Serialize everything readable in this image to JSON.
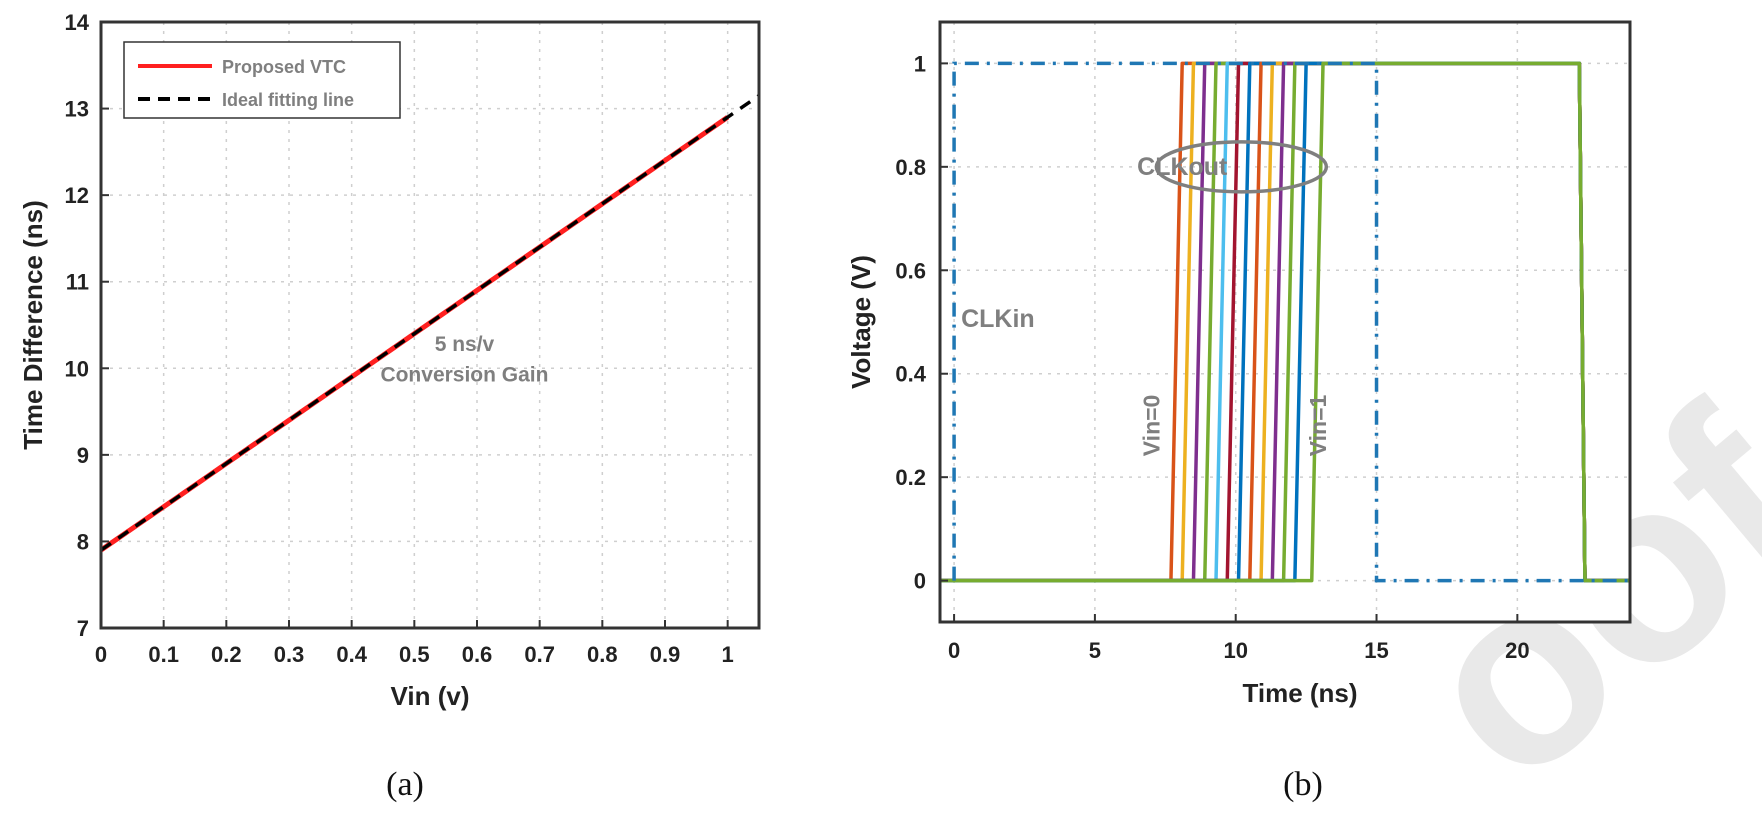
{
  "watermark": "oofs",
  "panels": [
    {
      "caption": "(a)"
    },
    {
      "caption": "(b)"
    }
  ],
  "chart_data": [
    {
      "type": "line",
      "xlabel": "Vin (v)",
      "ylabel": "Time Difference (ns)",
      "xlim": [
        0,
        1.05
      ],
      "ylim": [
        7,
        14
      ],
      "xticks": [
        "0",
        "0.1",
        "0.2",
        "0.3",
        "0.4",
        "0.5",
        "0.6",
        "0.7",
        "0.8",
        "0.9",
        "1"
      ],
      "yticks": [
        "7",
        "8",
        "9",
        "10",
        "11",
        "12",
        "13",
        "14"
      ],
      "grid": true,
      "legend_position": "top-left",
      "series": [
        {
          "name": "Proposed VTC",
          "color": "#ff2020",
          "style": "solid",
          "x": [
            0,
            1
          ],
          "y": [
            7.9,
            12.9
          ]
        },
        {
          "name": "Ideal fitting line",
          "color": "#000000",
          "style": "dashed",
          "x": [
            0,
            1.05
          ],
          "y": [
            7.9,
            13.15
          ]
        }
      ],
      "annotations": [
        {
          "text": "5 ns/v",
          "x": 0.58,
          "y": 10.2
        },
        {
          "text": "Conversion Gain",
          "x": 0.58,
          "y": 9.85
        }
      ]
    },
    {
      "type": "line",
      "xlabel": "Time (ns)",
      "ylabel": "Voltage (V)",
      "xlim": [
        -0.5,
        24
      ],
      "ylim": [
        -0.08,
        1.08
      ],
      "xticks": [
        "0",
        "5",
        "10",
        "15",
        "20"
      ],
      "yticks": [
        "0",
        "0.2",
        "0.4",
        "0.6",
        "0.8",
        "1"
      ],
      "grid": true,
      "clkin": {
        "color": "#1f77b4",
        "style": "dash-dot",
        "x": [
          0,
          0,
          15,
          15,
          24
        ],
        "y": [
          0,
          1,
          1,
          0,
          0
        ]
      },
      "clkout": {
        "fall_time": 22.3,
        "rise_times": [
          7.9,
          8.3,
          8.7,
          9.1,
          9.5,
          9.9,
          10.3,
          10.7,
          11.1,
          11.5,
          11.9,
          12.3,
          12.9
        ],
        "colors": [
          "#d95319",
          "#edb120",
          "#7e2f8e",
          "#77ac30",
          "#4dbeee",
          "#a2142f",
          "#0072bd",
          "#d95319",
          "#edb120",
          "#7e2f8e",
          "#77ac30",
          "#0072bd",
          "#77ac30"
        ]
      },
      "annotations": [
        {
          "text": "CLKout",
          "x": 6.5,
          "y": 0.8
        },
        {
          "text": "CLKin",
          "x": 0.25,
          "y": 0.49
        },
        {
          "text": "Vin=0",
          "x": 7.3,
          "y": 0.3
        },
        {
          "text": "Vin=1",
          "x": 13.2,
          "y": 0.3
        }
      ]
    }
  ]
}
